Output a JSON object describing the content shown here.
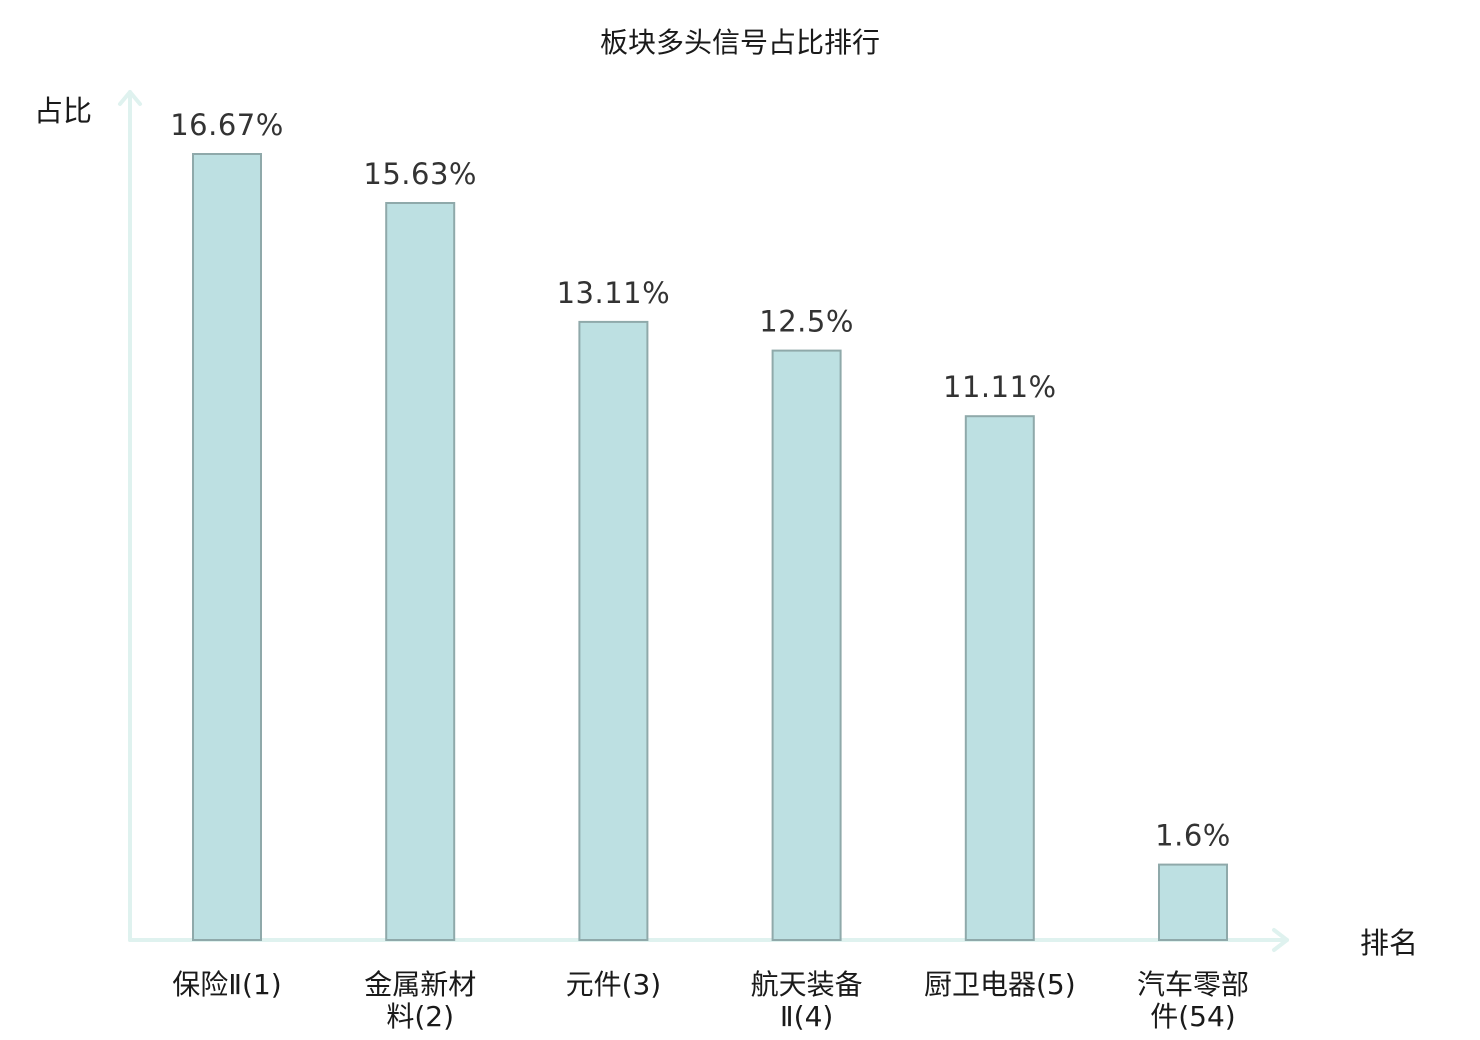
{
  "chart_data": {
    "type": "bar",
    "title": "板块多头信号占比排行",
    "ylabel": "占比",
    "xlabel": "排名",
    "categories": [
      [
        "保险Ⅱ(1)"
      ],
      [
        "金属新材",
        "料(2)"
      ],
      [
        "元件(3)"
      ],
      [
        "航天装备",
        "Ⅱ(4)"
      ],
      [
        "厨卫电器(5)"
      ],
      [
        "汽车零部",
        "件(54)"
      ]
    ],
    "values": [
      16.67,
      15.63,
      13.11,
      12.5,
      11.11,
      1.6
    ],
    "value_labels": [
      "16.67%",
      "15.63%",
      "13.11%",
      "12.5%",
      "11.11%",
      "1.6%"
    ],
    "highlight_index": 5,
    "ylim": [
      0,
      18
    ],
    "grid": false,
    "colors": {
      "bar_fill": "#bde0e2",
      "bar_stroke": "#8fa9aa",
      "axis": "#dff2ef",
      "text": "#1a1a1a",
      "highlight_text": "#e0161b"
    }
  }
}
